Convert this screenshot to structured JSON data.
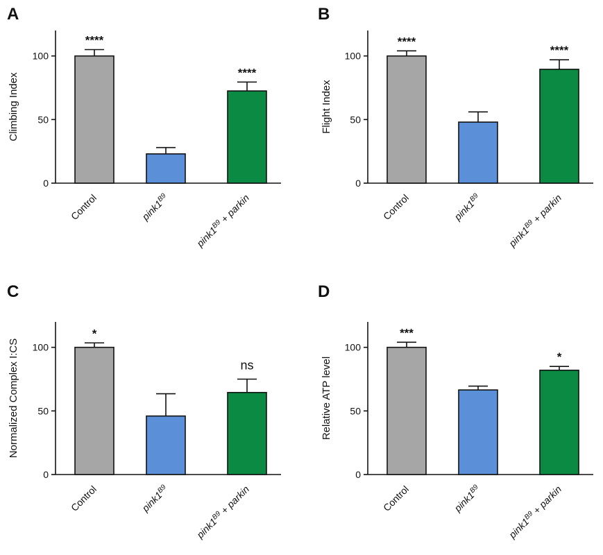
{
  "chart_data": [
    {
      "panel": "A",
      "type": "bar",
      "title": "",
      "xlabel": "",
      "ylabel": "Climbing Index",
      "ylim": [
        0,
        120
      ],
      "yticks": [
        0,
        50,
        100
      ],
      "categories": [
        "Control",
        "pink1B9",
        "pink1B9 + parkin"
      ],
      "values": [
        100,
        23,
        72.5
      ],
      "errors": [
        5,
        5,
        7
      ],
      "significance": [
        "****",
        "",
        "****"
      ],
      "colors": [
        "#a6a6a6",
        "#5b8fd8",
        "#0a8a42"
      ]
    },
    {
      "panel": "B",
      "type": "bar",
      "title": "",
      "xlabel": "",
      "ylabel": "Flight Index",
      "ylim": [
        0,
        120
      ],
      "yticks": [
        0,
        50,
        100
      ],
      "categories": [
        "Control",
        "pink1B9",
        "pink1B9 + parkin"
      ],
      "values": [
        100,
        48,
        89.5
      ],
      "errors": [
        4,
        8,
        7.5
      ],
      "significance": [
        "****",
        "",
        "****"
      ],
      "colors": [
        "#a6a6a6",
        "#5b8fd8",
        "#0a8a42"
      ]
    },
    {
      "panel": "C",
      "type": "bar",
      "title": "",
      "xlabel": "",
      "ylabel": "Normalized Complex I:CS",
      "ylim": [
        0,
        120
      ],
      "yticks": [
        0,
        50,
        100
      ],
      "categories": [
        "Control",
        "pink1B9",
        "pink1B9 + parkin"
      ],
      "values": [
        100,
        46,
        64.5
      ],
      "errors": [
        3.5,
        17.5,
        10.5
      ],
      "significance": [
        "*",
        "",
        "ns"
      ],
      "colors": [
        "#a6a6a6",
        "#5b8fd8",
        "#0a8a42"
      ]
    },
    {
      "panel": "D",
      "type": "bar",
      "title": "",
      "xlabel": "",
      "ylabel": "Relative ATP level",
      "ylim": [
        0,
        120
      ],
      "yticks": [
        0,
        50,
        100
      ],
      "categories": [
        "Control",
        "pink1B9",
        "pink1B9 + parkin"
      ],
      "values": [
        100,
        66.5,
        82
      ],
      "errors": [
        4,
        3,
        3
      ],
      "significance": [
        "***",
        "",
        "*"
      ],
      "colors": [
        "#a6a6a6",
        "#5b8fd8",
        "#0a8a42"
      ]
    }
  ]
}
